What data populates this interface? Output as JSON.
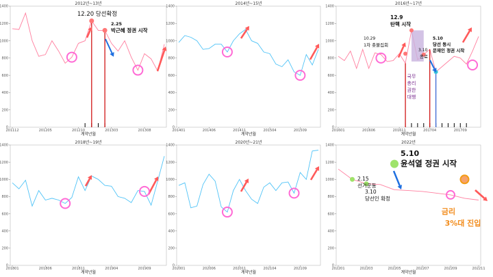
{
  "chart_data": [
    {
      "type": "line",
      "title": "2012년~13년",
      "xlabel": "계약년월",
      "ylim": [
        0,
        1400
      ],
      "yticks": [
        0,
        200,
        400,
        600,
        800,
        1000,
        1200,
        1400
      ],
      "x": [
        "201112",
        "201201",
        "201202",
        "201203",
        "201204",
        "201205",
        "201206",
        "201207",
        "201208",
        "201209",
        "201210",
        "201211",
        "201212",
        "201301",
        "201302",
        "201303",
        "201304",
        "201305",
        "201306",
        "201307",
        "201308",
        "201309",
        "201310",
        "201311"
      ],
      "xtick_labels": [
        "201112",
        "201205",
        "201210",
        "201303",
        "201308"
      ],
      "series": [
        {
          "color": "#ff7f9f",
          "values": [
            1140,
            1130,
            1320,
            1000,
            820,
            840,
            1000,
            880,
            740,
            810,
            970,
            1000,
            1230,
            1120,
            1120,
            970,
            880,
            1000,
            810,
            660,
            850,
            790,
            650,
            960
          ]
        }
      ],
      "annotations": [
        {
          "text": "12.20 당선확정"
        },
        {
          "text": "2.25"
        },
        {
          "text": "박근혜 정권 시작"
        }
      ]
    },
    {
      "type": "line",
      "title": "2014년~15년",
      "xlabel": "계약년월",
      "ylim": [
        0,
        1400
      ],
      "yticks": [
        0,
        200,
        400,
        600,
        800,
        1000,
        1200,
        1400
      ],
      "x": [
        "201401",
        "201402",
        "201403",
        "201404",
        "201405",
        "201406",
        "201407",
        "201408",
        "201409",
        "201410",
        "201411",
        "201412",
        "201501",
        "201502",
        "201503",
        "201504",
        "201505",
        "201506",
        "201507",
        "201508",
        "201509",
        "201510",
        "201511",
        "201512"
      ],
      "xtick_labels": [
        "201401",
        "201406",
        "201411",
        "201504",
        "201509"
      ],
      "series": [
        {
          "color": "#4fc3f7",
          "values": [
            980,
            1060,
            1040,
            1000,
            900,
            910,
            960,
            960,
            870,
            1000,
            1080,
            1130,
            1000,
            970,
            870,
            850,
            730,
            700,
            780,
            640,
            600,
            840,
            720,
            900
          ]
        }
      ]
    },
    {
      "type": "line",
      "title": "2016년~17년",
      "xlabel": "계약년월",
      "ylim": [
        0,
        1400
      ],
      "yticks": [
        0,
        200,
        400,
        600,
        800,
        1000,
        1200,
        1400
      ],
      "x": [
        "201601",
        "201602",
        "201603",
        "201604",
        "201605",
        "201606",
        "201607",
        "201608",
        "201609",
        "201610",
        "201611",
        "201612",
        "201701",
        "201702",
        "201703",
        "201704",
        "201705",
        "201706",
        "201707",
        "201708",
        "201709",
        "201710",
        "201711",
        "201712"
      ],
      "xtick_labels": [
        "201601",
        "201606",
        "201611",
        "201704",
        "201709"
      ],
      "series": [
        {
          "color": "#ff7f9f",
          "values": [
            820,
            770,
            880,
            680,
            900,
            680,
            860,
            840,
            760,
            770,
            850,
            740,
            1120,
            780,
            840,
            900,
            640,
            700,
            760,
            820,
            800,
            730,
            880,
            1050
          ]
        }
      ],
      "annotations": [
        {
          "text": "12.9"
        },
        {
          "text": "탄핵 시작"
        },
        {
          "text": "10.29"
        },
        {
          "text": "1차 촛불집회"
        },
        {
          "text": "3.10"
        },
        {
          "text": "종료"
        },
        {
          "text": "5.10"
        },
        {
          "text": "당선 동시"
        },
        {
          "text": "문재인 정권 시작"
        },
        {
          "text": "국무"
        },
        {
          "text": "총리"
        },
        {
          "text": "권한"
        },
        {
          "text": "대행"
        }
      ]
    },
    {
      "type": "line",
      "title": "2018년~19년",
      "xlabel": "계약년월",
      "ylim": [
        0,
        1400
      ],
      "yticks": [
        0,
        200,
        400,
        600,
        800,
        1000,
        1200,
        1400
      ],
      "x": [
        "201801",
        "201802",
        "201803",
        "201804",
        "201805",
        "201806",
        "201807",
        "201808",
        "201809",
        "201810",
        "201811",
        "201812",
        "201901",
        "201902",
        "201903",
        "201904",
        "201905",
        "201906",
        "201907",
        "201908",
        "201909",
        "201910",
        "201911",
        "201912"
      ],
      "xtick_labels": [
        "201801",
        "201806",
        "201811",
        "201904",
        "201909"
      ],
      "series": [
        {
          "color": "#4fc3f7",
          "values": [
            960,
            890,
            990,
            690,
            870,
            760,
            780,
            760,
            720,
            790,
            1030,
            870,
            1040,
            1000,
            930,
            920,
            800,
            780,
            730,
            870,
            860,
            700,
            980,
            1270
          ]
        }
      ]
    },
    {
      "type": "line",
      "title": "2020년~21년",
      "xlabel": "계약년월",
      "ylim": [
        0,
        1400
      ],
      "yticks": [
        0,
        200,
        400,
        600,
        800,
        1000,
        1200,
        1400
      ],
      "x": [
        "202001",
        "202002",
        "202003",
        "202004",
        "202005",
        "202006",
        "202007",
        "202008",
        "202009",
        "202010",
        "202011",
        "202012",
        "202101",
        "202102",
        "202103",
        "202104",
        "202105",
        "202106",
        "202107",
        "202108",
        "202109",
        "202110",
        "202111",
        "202112"
      ],
      "xtick_labels": [
        "202001",
        "202006",
        "202011",
        "202104",
        "202109"
      ],
      "series": [
        {
          "color": "#4fc3f7",
          "values": [
            930,
            960,
            670,
            690,
            940,
            1060,
            980,
            680,
            620,
            870,
            1000,
            870,
            770,
            720,
            910,
            960,
            870,
            960,
            970,
            840,
            1080,
            1000,
            1330,
            1340
          ]
        }
      ]
    },
    {
      "type": "line",
      "title": "2022년",
      "xlabel": "계약년월",
      "ylim": [
        0,
        1400
      ],
      "yticks": [
        0,
        200,
        400,
        600,
        800,
        1000,
        1200,
        1400
      ],
      "x": [
        "202201",
        "202202",
        "202203",
        "202204",
        "202205",
        "202206",
        "202207",
        "202208",
        "202209",
        "202210",
        "202211"
      ],
      "xtick_labels": [
        "202201",
        "202203",
        "202205",
        "202207",
        "202209",
        "202211"
      ],
      "series": [
        {
          "color": "#ff7f9f",
          "values": [
            1120,
            1000,
            950,
            940,
            880,
            870,
            860,
            840,
            820,
            780,
            760
          ]
        }
      ],
      "annotations": [
        {
          "text": "5.10"
        },
        {
          "text": "윤석열 정권 시작"
        },
        {
          "text": "2.15"
        },
        {
          "text": "선거운동"
        },
        {
          "text": "3.10"
        },
        {
          "text": "당선인 확정"
        },
        {
          "text": "금리"
        },
        {
          "text": "3%대 진입"
        }
      ]
    }
  ]
}
